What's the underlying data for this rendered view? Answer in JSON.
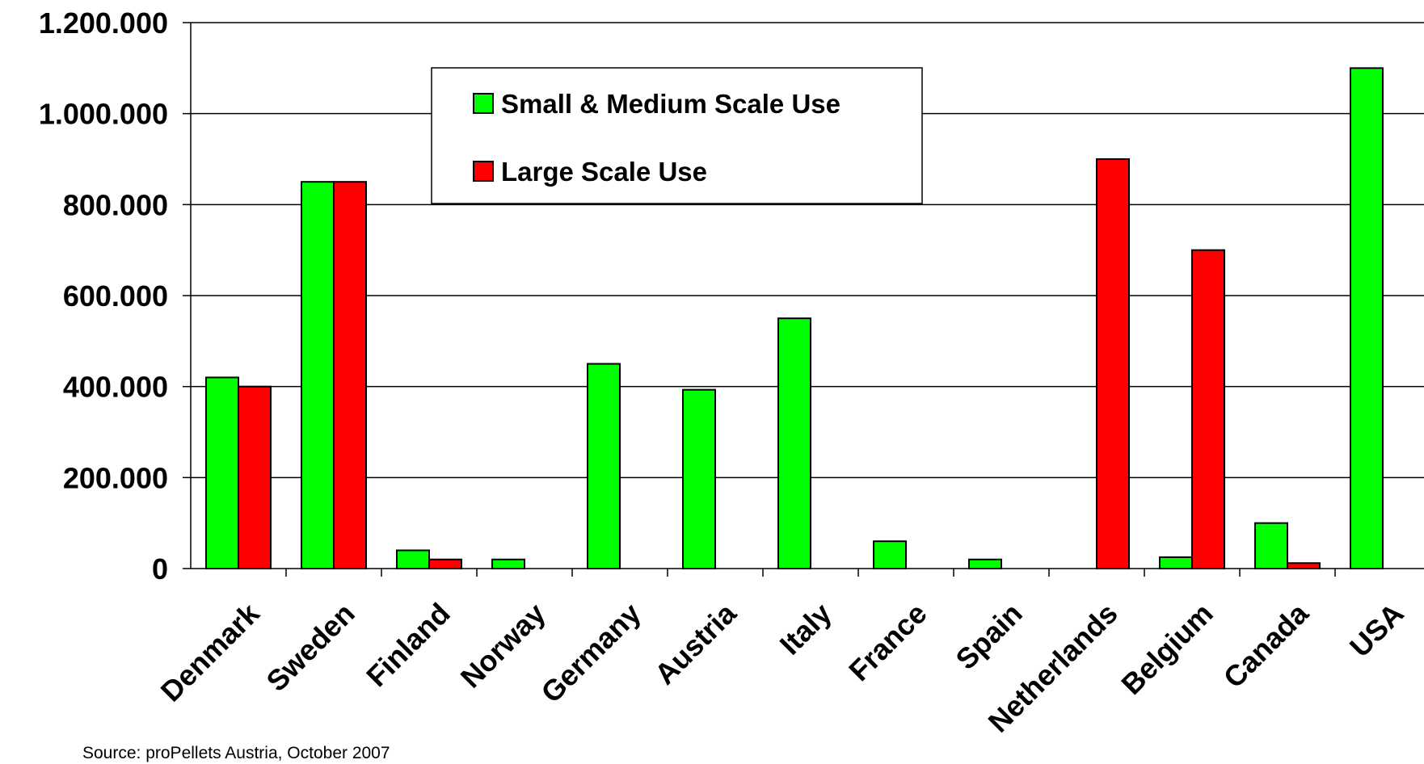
{
  "chart_data": {
    "type": "bar",
    "title": "",
    "xlabel": "",
    "ylabel": "",
    "categories": [
      "Denmark",
      "Sweden",
      "Finland",
      "Norway",
      "Germany",
      "Austria",
      "Italy",
      "France",
      "Spain",
      "Netherlands",
      "Belgium",
      "Canada",
      "USA"
    ],
    "series": [
      {
        "name": "Small & Medium Scale Use",
        "color": "#00ff00",
        "values": [
          420000,
          850000,
          40000,
          20000,
          450000,
          393000,
          550000,
          60000,
          20000,
          0,
          25000,
          100000,
          1100000
        ]
      },
      {
        "name": "Large Scale Use",
        "color": "#ff0000",
        "values": [
          400000,
          850000,
          20000,
          0,
          0,
          0,
          0,
          0,
          0,
          900000,
          700000,
          12000,
          0
        ]
      }
    ],
    "ylim": [
      0,
      1200000
    ],
    "yticks": [
      0,
      200000,
      400000,
      600000,
      800000,
      1000000,
      1200000
    ],
    "ytick_labels": [
      "0",
      "200.000",
      "400.000",
      "600.000",
      "800.000",
      "1.000.000",
      "1.200.000"
    ],
    "grid": true,
    "legend_position": "top-center"
  },
  "source_note": "Source: proPellets Austria, October 2007"
}
